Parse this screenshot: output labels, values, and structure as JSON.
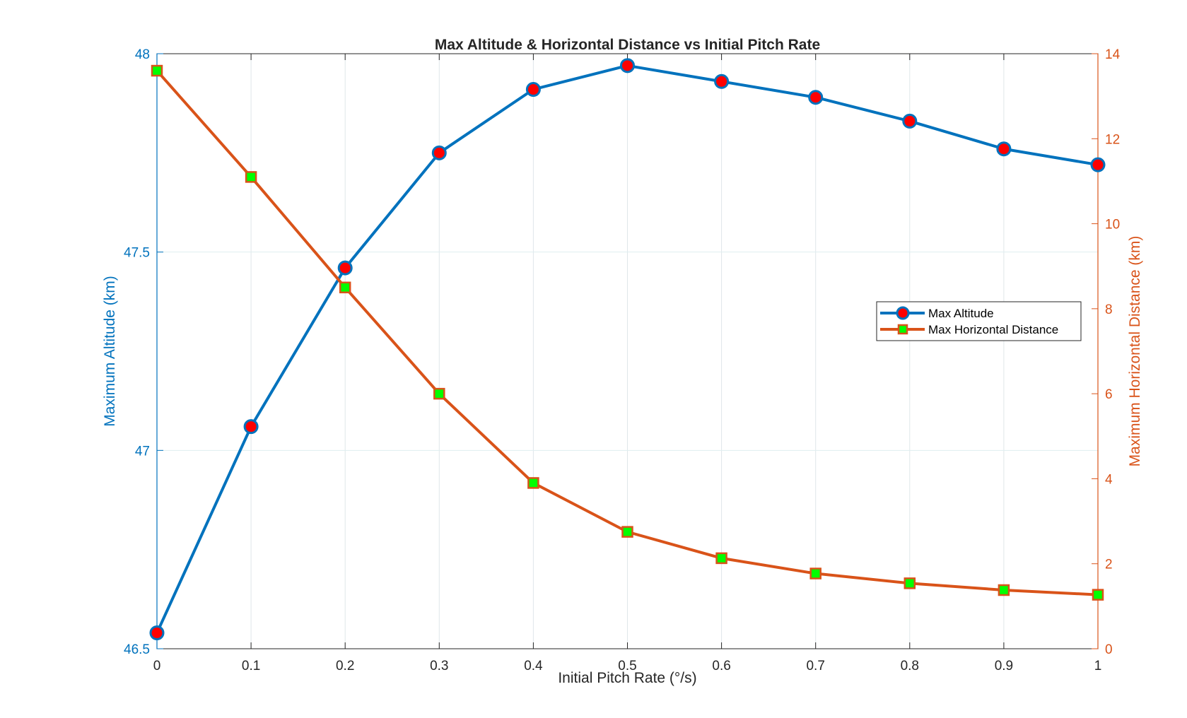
{
  "chart_data": {
    "type": "line",
    "title": "Max Altitude & Horizontal Distance vs Initial Pitch Rate",
    "xlabel": "Initial Pitch Rate (°/s)",
    "ylabel_left": "Maximum Altitude (km)",
    "ylabel_right": "Maximum Horizontal Distance (km)",
    "x": [
      0,
      0.1,
      0.2,
      0.3,
      0.4,
      0.5,
      0.6,
      0.7,
      0.8,
      0.9,
      1.0
    ],
    "x_ticks": [
      "0",
      "0.1",
      "0.2",
      "0.3",
      "0.4",
      "0.5",
      "0.6",
      "0.7",
      "0.8",
      "0.9",
      "1"
    ],
    "xlim": [
      0,
      1
    ],
    "ylim_left": [
      46.5,
      48
    ],
    "y_ticks_left": [
      "46.5",
      "47",
      "47.5",
      "48"
    ],
    "ylim_right": [
      0,
      14
    ],
    "y_ticks_right": [
      "0",
      "2",
      "4",
      "6",
      "8",
      "10",
      "12",
      "14"
    ],
    "grid": true,
    "legend_position": "center-right",
    "series": [
      {
        "name": "Max Altitude",
        "axis": "left",
        "marker": "circle",
        "line_color": "#0072BD",
        "marker_face": "#FF0000",
        "values": [
          46.54,
          47.06,
          47.46,
          47.75,
          47.91,
          47.97,
          47.93,
          47.89,
          47.83,
          47.76,
          47.72
        ]
      },
      {
        "name": "Max Horizontal Distance",
        "axis": "right",
        "marker": "square",
        "line_color": "#D95319",
        "marker_face": "#00FF00",
        "values": [
          13.6,
          11.1,
          8.5,
          6.0,
          3.9,
          2.75,
          2.13,
          1.77,
          1.54,
          1.38,
          1.27
        ]
      }
    ]
  }
}
